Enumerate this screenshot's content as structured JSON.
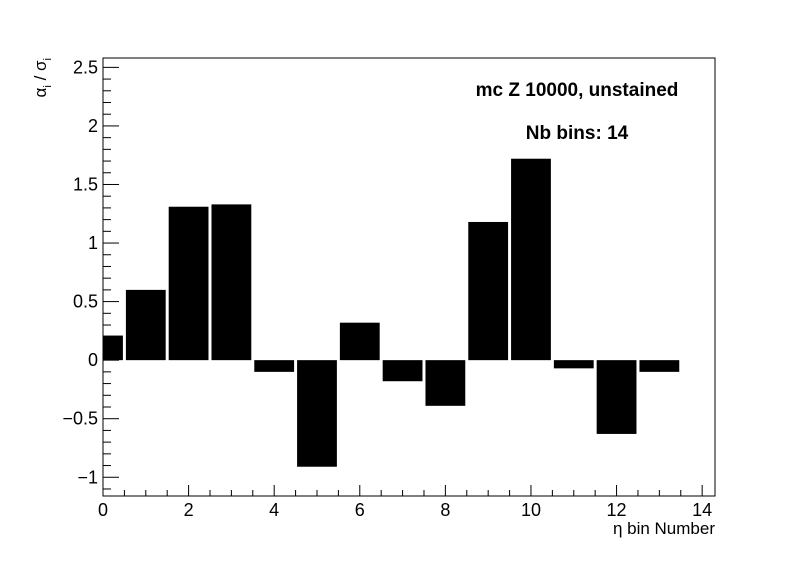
{
  "chart_data": {
    "type": "bar",
    "xlabel": "η bin Number",
    "ylabel": {
      "alpha": "α",
      "sigma": "σ",
      "sub": "i",
      "slash": "/"
    },
    "annotations": [
      "mc Z 10000, unstained",
      "Nb bins: 14"
    ],
    "xlim": [
      0,
      14.3
    ],
    "ylim": [
      -1.16,
      2.58
    ],
    "xticks": [
      "0",
      "2",
      "4",
      "6",
      "8",
      "10",
      "12",
      "14"
    ],
    "yticks": [
      "−1",
      "−0.5",
      "0",
      "0.5",
      "1",
      "1.5",
      "2",
      "2.5"
    ],
    "xtick_values": [
      0,
      2,
      4,
      6,
      8,
      10,
      12,
      14
    ],
    "ytick_values": [
      -1,
      -0.5,
      0,
      0.5,
      1,
      1.5,
      2,
      2.5
    ],
    "bar_color": "#000000",
    "categories": [
      0,
      1,
      2,
      3,
      4,
      5,
      6,
      7,
      8,
      9,
      10,
      11,
      12,
      13
    ],
    "values": [
      0.21,
      0.6,
      1.31,
      1.33,
      -0.1,
      -0.91,
      0.32,
      -0.18,
      -0.39,
      1.18,
      1.72,
      -0.07,
      -0.63,
      -0.1
    ],
    "grid": false,
    "legend": "none"
  }
}
